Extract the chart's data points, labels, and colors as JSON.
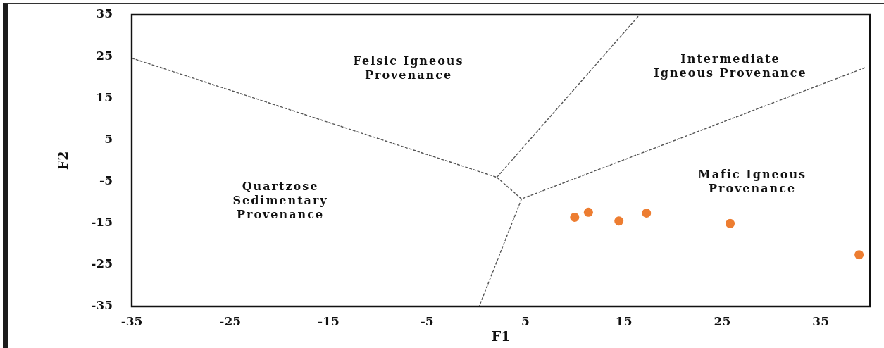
{
  "chart_data": {
    "type": "scatter",
    "xlabel": "F1",
    "ylabel": "F2",
    "xlim": [
      -35,
      40
    ],
    "xticks": [
      -35,
      -25,
      -15,
      -5,
      5,
      15,
      25,
      35
    ],
    "ylim": [
      -35,
      35
    ],
    "yticks": [
      -35,
      -25,
      -15,
      -5,
      5,
      15,
      25,
      35
    ],
    "marker": "circle",
    "series": [
      {
        "color": "#ed7d31",
        "x": [
          10.0,
          11.4,
          14.5,
          17.3,
          25.8,
          38.9
        ],
        "values": [
          -13.6,
          -12.4,
          -14.5,
          -12.6,
          -15.1,
          -22.6
        ]
      },
      {
        "type": "line",
        "color": "#555555",
        "line_style": "dashed",
        "marker": "none",
        "x": [
          -35,
          2.1,
          4.6,
          39.5
        ],
        "values": [
          24.6,
          -4.0,
          -9.2,
          22.3
        ]
      },
      {
        "type": "line",
        "color": "#555555",
        "line_style": "dashed",
        "marker": "none",
        "x": [
          2.1,
          16.6
        ],
        "values": [
          -4.0,
          35
        ]
      },
      {
        "type": "line",
        "color": "#555555",
        "line_style": "dashed",
        "marker": "none",
        "x": [
          4.6,
          0.3
        ],
        "values": [
          -9.2,
          -35
        ]
      }
    ],
    "annotations": [
      "Felsic Igneous\nProvenance",
      "Intermediate\nIgneous Provenance",
      "Mafic Igneous\nProvenance",
      "Quartzose\nSedimentary\nProvenance"
    ]
  }
}
